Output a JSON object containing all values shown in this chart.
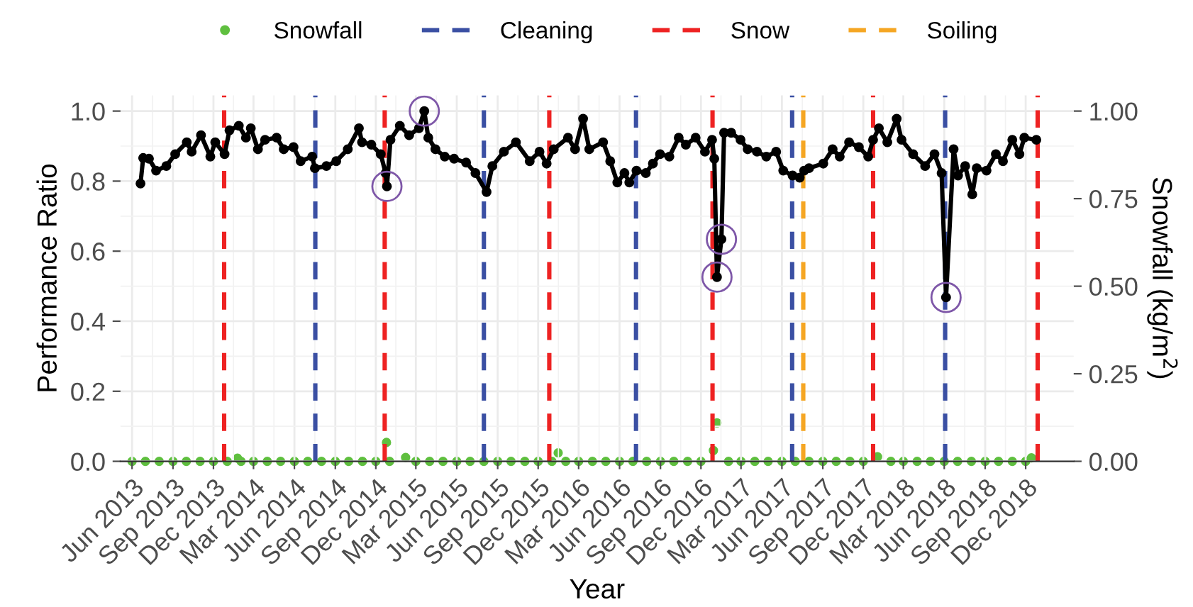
{
  "chart_data": {
    "type": "line",
    "xlabel": "Year",
    "ylabel": "Performance Ratio",
    "y2label": "Snowfall (kg/m$^{2}$)",
    "xlim": [
      "2013-05-06",
      "2019-03-19"
    ],
    "xticks": [
      {
        "value": "2013-06-01",
        "label": "Jun 2013"
      },
      {
        "value": "2013-09-01",
        "label": "Sep 2013"
      },
      {
        "value": "2013-12-01",
        "label": "Dec 2013"
      },
      {
        "value": "2014-03-01",
        "label": "Mar 2014"
      },
      {
        "value": "2014-06-01",
        "label": "Jun 2014"
      },
      {
        "value": "2014-09-01",
        "label": "Sep 2014"
      },
      {
        "value": "2014-12-01",
        "label": "Dec 2014"
      },
      {
        "value": "2015-03-01",
        "label": "Mar 2015"
      },
      {
        "value": "2015-06-01",
        "label": "Jun 2015"
      },
      {
        "value": "2015-09-01",
        "label": "Sep 2015"
      },
      {
        "value": "2015-12-01",
        "label": "Dec 2015"
      },
      {
        "value": "2016-03-01",
        "label": "Mar 2016"
      },
      {
        "value": "2016-06-01",
        "label": "Jun 2016"
      },
      {
        "value": "2016-09-01",
        "label": "Sep 2016"
      },
      {
        "value": "2016-12-01",
        "label": "Dec 2016"
      },
      {
        "value": "2017-03-01",
        "label": "Mar 2017"
      },
      {
        "value": "2017-06-01",
        "label": "Jun 2017"
      },
      {
        "value": "2017-09-01",
        "label": "Sep 2017"
      },
      {
        "value": "2017-12-01",
        "label": "Dec 2017"
      },
      {
        "value": "2018-03-01",
        "label": "Mar 2018"
      },
      {
        "value": "2018-06-01",
        "label": "Jun 2018"
      },
      {
        "value": "2018-09-01",
        "label": "Sep 2018"
      },
      {
        "value": "2018-12-01",
        "label": "Dec 2018"
      }
    ],
    "ylim": [
      0,
      1.045
    ],
    "yticks": [
      {
        "value": 0,
        "label": "0.0"
      },
      {
        "value": 0.2,
        "label": "0.2"
      },
      {
        "value": 0.4,
        "label": "0.4"
      },
      {
        "value": 0.6,
        "label": "0.6"
      },
      {
        "value": 0.8,
        "label": "0.8"
      },
      {
        "value": 1,
        "label": "1.0"
      }
    ],
    "y2lim": [
      0,
      1.045
    ],
    "y2ticks": [
      {
        "value": 0,
        "label": "0.00"
      },
      {
        "value": 0.25,
        "label": "0.25"
      },
      {
        "value": 0.5,
        "label": "0.50"
      },
      {
        "value": 0.75,
        "label": "0.75"
      },
      {
        "value": 1,
        "label": "1.00"
      }
    ],
    "grid": true,
    "legend": "top",
    "marker": "circle",
    "line_style": "solid",
    "series": [
      {
        "type": "scatter",
        "name": "Snowfall",
        "color": "#5fbf3f",
        "axis": "y2",
        "x": [
          "2013-06-01",
          "2013-07-01",
          "2013-08-01",
          "2013-09-01",
          "2013-10-01",
          "2013-11-01",
          "2013-12-01",
          "2014-01-01",
          "2014-01-24",
          "2014-02-01",
          "2014-03-01",
          "2014-04-01",
          "2014-05-01",
          "2014-06-01",
          "2014-07-01",
          "2014-08-01",
          "2014-09-01",
          "2014-10-01",
          "2014-11-01",
          "2014-12-01",
          "2014-12-25",
          "2015-01-01",
          "2015-02-06",
          "2015-03-01",
          "2015-04-01",
          "2015-05-01",
          "2015-06-01",
          "2015-07-01",
          "2015-08-01",
          "2015-09-01",
          "2015-10-01",
          "2015-11-01",
          "2015-12-01",
          "2016-01-01",
          "2016-01-15",
          "2016-02-01",
          "2016-03-01",
          "2016-04-01",
          "2016-05-01",
          "2016-06-01",
          "2016-07-01",
          "2016-08-01",
          "2016-09-01",
          "2016-10-01",
          "2016-11-01",
          "2016-12-01",
          "2016-12-29",
          "2017-01-06",
          "2017-02-01",
          "2017-03-01",
          "2017-04-01",
          "2017-05-01",
          "2017-06-01",
          "2017-07-01",
          "2017-08-01",
          "2017-09-01",
          "2017-10-01",
          "2017-11-01",
          "2017-12-01",
          "2018-01-02",
          "2018-02-01",
          "2018-03-01",
          "2018-04-01",
          "2018-05-01",
          "2018-06-01",
          "2018-07-01",
          "2018-08-01",
          "2018-09-01",
          "2018-10-01",
          "2018-11-01",
          "2018-12-01",
          "2018-12-14"
        ],
        "values": [
          0,
          0,
          0,
          0,
          0,
          0,
          0,
          0,
          0.009,
          0,
          0,
          0,
          0,
          0,
          0,
          0,
          0,
          0,
          0,
          0,
          0.054,
          0,
          0.011,
          0,
          0,
          0,
          0,
          0,
          0,
          0,
          0,
          0,
          0,
          0,
          0.024,
          0,
          0,
          0,
          0,
          0,
          0,
          0,
          0,
          0,
          0,
          0,
          0.031,
          0.11,
          0,
          0,
          0,
          0,
          0,
          0,
          0,
          0,
          0,
          0,
          0,
          0.013,
          0,
          0,
          0,
          0,
          0,
          0,
          0,
          0,
          0,
          0,
          0,
          0.01
        ]
      },
      {
        "color": "#000000",
        "x": [
          "2013-06-20",
          "2013-06-26",
          "2013-07-09",
          "2013-07-25",
          "2013-08-17",
          "2013-09-06",
          "2013-10-02",
          "2013-10-13",
          "2013-11-03",
          "2013-11-24",
          "2013-12-05",
          "2013-12-26",
          "2014-01-06",
          "2014-01-27",
          "2014-02-12",
          "2014-02-23",
          "2014-03-11",
          "2014-03-27",
          "2014-04-22",
          "2014-05-08",
          "2014-05-30",
          "2014-06-15",
          "2014-07-11",
          "2014-07-17",
          "2014-08-12",
          "2014-09-03",
          "2014-09-29",
          "2014-10-24",
          "2014-10-31",
          "2014-11-21",
          "2014-12-12",
          "2014-12-23",
          "2014-12-26",
          "2015-01-03",
          "2015-01-24",
          "2015-02-14",
          "2015-03-08",
          "2015-03-20",
          "2015-03-29",
          "2015-04-14",
          "2015-05-05",
          "2015-05-26",
          "2015-06-22",
          "2015-07-13",
          "2015-08-07",
          "2015-08-20",
          "2015-09-15",
          "2015-10-12",
          "2015-11-12",
          "2015-12-04",
          "2015-12-20",
          "2016-01-05",
          "2016-02-06",
          "2016-02-22",
          "2016-03-11",
          "2016-03-25",
          "2016-04-25",
          "2016-05-11",
          "2016-05-27",
          "2016-06-12",
          "2016-06-23",
          "2016-07-09",
          "2016-07-30",
          "2016-08-15",
          "2016-08-31",
          "2016-09-21",
          "2016-10-12",
          "2016-10-28",
          "2016-11-19",
          "2016-12-10",
          "2016-12-26",
          "2016-12-31",
          "2017-01-06",
          "2017-01-16",
          "2017-01-22",
          "2017-02-07",
          "2017-02-28",
          "2017-03-16",
          "2017-04-06",
          "2017-04-27",
          "2017-05-19",
          "2017-06-04",
          "2017-06-25",
          "2017-07-11",
          "2017-07-21",
          "2017-08-01",
          "2017-09-02",
          "2017-09-23",
          "2017-10-09",
          "2017-10-30",
          "2017-11-21",
          "2017-12-12",
          "2017-12-23",
          "2018-01-05",
          "2018-01-24",
          "2018-02-14",
          "2018-02-25",
          "2018-03-23",
          "2018-04-19",
          "2018-05-10",
          "2018-05-26",
          "2018-06-05",
          "2018-06-22",
          "2018-07-02",
          "2018-07-18",
          "2018-08-03",
          "2018-08-13",
          "2018-09-04",
          "2018-09-25",
          "2018-10-11",
          "2018-11-01",
          "2018-11-17",
          "2018-11-28",
          "2018-12-25"
        ],
        "values": [
          0.793,
          0.866,
          0.864,
          0.83,
          0.843,
          0.877,
          0.911,
          0.884,
          0.931,
          0.87,
          0.911,
          0.877,
          0.945,
          0.958,
          0.924,
          0.951,
          0.891,
          0.918,
          0.924,
          0.891,
          0.897,
          0.857,
          0.87,
          0.837,
          0.843,
          0.857,
          0.891,
          0.951,
          0.911,
          0.904,
          0.877,
          0.823,
          0.785,
          0.918,
          0.958,
          0.931,
          0.951,
          1.0,
          0.924,
          0.891,
          0.87,
          0.864,
          0.853,
          0.823,
          0.769,
          0.843,
          0.884,
          0.911,
          0.857,
          0.884,
          0.85,
          0.891,
          0.924,
          0.891,
          0.978,
          0.891,
          0.911,
          0.857,
          0.796,
          0.823,
          0.796,
          0.83,
          0.823,
          0.85,
          0.877,
          0.87,
          0.924,
          0.904,
          0.924,
          0.884,
          0.918,
          0.864,
          0.526,
          0.634,
          0.938,
          0.938,
          0.918,
          0.891,
          0.884,
          0.87,
          0.884,
          0.83,
          0.816,
          0.81,
          0.83,
          0.837,
          0.85,
          0.891,
          0.87,
          0.911,
          0.897,
          0.87,
          0.918,
          0.951,
          0.911,
          0.978,
          0.918,
          0.877,
          0.843,
          0.877,
          0.823,
          0.468,
          0.891,
          0.816,
          0.843,
          0.762,
          0.837,
          0.83,
          0.877,
          0.857,
          0.918,
          0.877,
          0.924,
          0.918
        ]
      },
      {
        "type": "scatter",
        "color": "#7e57a8",
        "x": [
          "2014-12-26",
          "2015-03-20",
          "2017-01-06",
          "2017-01-16",
          "2018-06-05"
        ],
        "values": [
          0.785,
          1.0,
          0.526,
          0.634,
          0.468
        ]
      }
    ],
    "ref_lines": [
      {
        "axis": "x",
        "value": "2014-07-18",
        "label": "Cleaning",
        "color": "#3a4fa3",
        "line_style": "dashed"
      },
      {
        "axis": "x",
        "value": "2013-12-25",
        "label": "Snow",
        "color": "#ee2222",
        "line_style": "dashed"
      },
      {
        "axis": "x",
        "value": "2014-12-21",
        "color": "#ee2222",
        "line_style": "dashed"
      },
      {
        "axis": "x",
        "value": "2015-08-01",
        "color": "#3a4fa3",
        "line_style": "dashed"
      },
      {
        "axis": "x",
        "value": "2015-12-26",
        "color": "#ee2222",
        "line_style": "dashed"
      },
      {
        "axis": "x",
        "value": "2016-07-08",
        "color": "#3a4fa3",
        "line_style": "dashed"
      },
      {
        "axis": "x",
        "value": "2016-12-27",
        "color": "#ee2222",
        "line_style": "dashed"
      },
      {
        "axis": "x",
        "value": "2017-06-24",
        "color": "#3a4fa3",
        "line_style": "dashed"
      },
      {
        "axis": "x",
        "value": "2017-07-19",
        "label": "Soiling",
        "color": "#f5a623",
        "line_style": "dashed"
      },
      {
        "axis": "x",
        "value": "2017-12-23",
        "color": "#ee2222",
        "line_style": "dashed"
      },
      {
        "axis": "x",
        "value": "2018-06-03",
        "color": "#3a4fa3",
        "line_style": "dashed"
      },
      {
        "axis": "x",
        "value": "2018-12-28",
        "color": "#ee2222",
        "line_style": "dashed"
      }
    ]
  }
}
